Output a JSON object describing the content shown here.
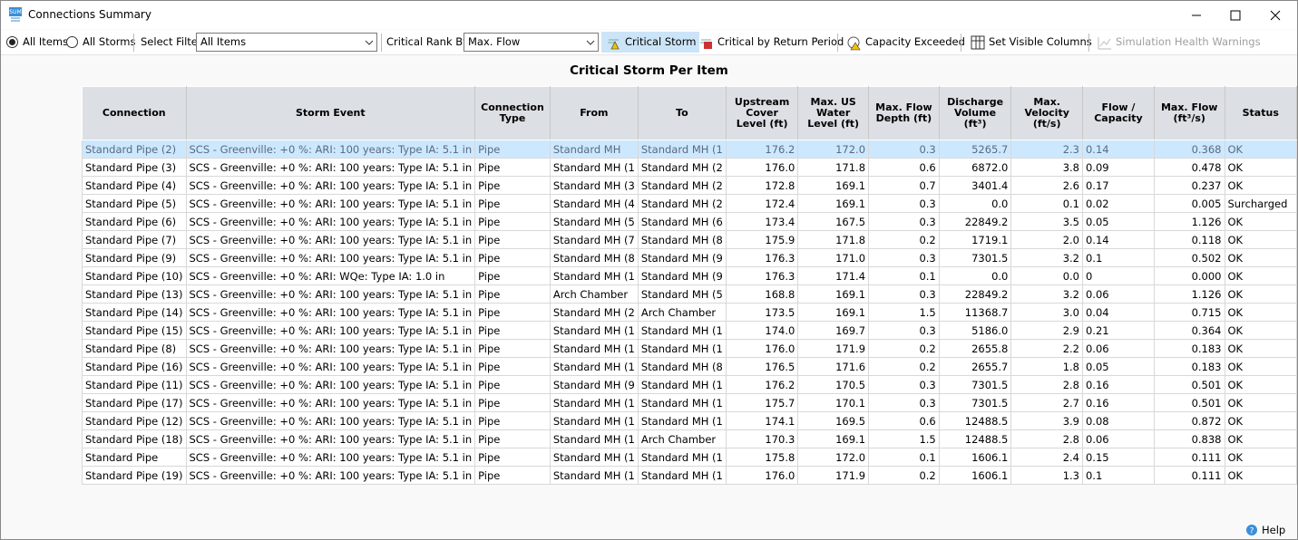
{
  "window": {
    "title": "Connections Summary"
  },
  "toolbar": {
    "all_items": "All Items",
    "all_storms": "All Storms",
    "select_filter_label": "Select Filter",
    "select_filter_value": "All Items",
    "rank_label": "Critical Rank By:",
    "rank_value": "Max. Flow",
    "buttons": [
      "Critical Storm",
      "Critical by Return Period",
      "Capacity Exceeded",
      "Set Visible Columns",
      "Simulation Health Warnings"
    ]
  },
  "table": {
    "title": "Critical Storm Per Item",
    "columns": [
      "Connection",
      "Storm Event",
      "Connection Type",
      "From",
      "To",
      "Upstream Cover Level (ft)",
      "Max. US Water Level (ft)",
      "Max. Flow Depth (ft)",
      "Discharge Volume (ft³)",
      "Max. Velocity (ft/s)",
      "Flow / Capacity",
      "Max. Flow (ft³/s)",
      "Status"
    ],
    "rows": [
      [
        "Standard Pipe (2)",
        "SCS - Greenville: +0 %: ARI: 100 years: Type IA: 5.1 in",
        "Pipe",
        "Standard MH",
        "Standard MH (1",
        "176.2",
        "172.0",
        "0.3",
        "5265.7",
        "2.3",
        "0.14",
        "0.368",
        "OK"
      ],
      [
        "Standard Pipe (3)",
        "SCS - Greenville: +0 %: ARI: 100 years: Type IA: 5.1 in",
        "Pipe",
        "Standard MH (1",
        "Standard MH (2",
        "176.0",
        "171.8",
        "0.6",
        "6872.0",
        "3.8",
        "0.09",
        "0.478",
        "OK"
      ],
      [
        "Standard Pipe (4)",
        "SCS - Greenville: +0 %: ARI: 100 years: Type IA: 5.1 in",
        "Pipe",
        "Standard MH (3",
        "Standard MH (2",
        "172.8",
        "169.1",
        "0.7",
        "3401.4",
        "2.6",
        "0.17",
        "0.237",
        "OK"
      ],
      [
        "Standard Pipe (5)",
        "SCS - Greenville: +0 %: ARI: 100 years: Type IA: 5.1 in",
        "Pipe",
        "Standard MH (4",
        "Standard MH (2",
        "172.4",
        "169.1",
        "0.3",
        "0.0",
        "0.1",
        "0.02",
        "0.005",
        "Surcharged"
      ],
      [
        "Standard Pipe (6)",
        "SCS - Greenville: +0 %: ARI: 100 years: Type IA: 5.1 in",
        "Pipe",
        "Standard MH (5",
        "Standard MH (6",
        "173.4",
        "167.5",
        "0.3",
        "22849.2",
        "3.5",
        "0.05",
        "1.126",
        "OK"
      ],
      [
        "Standard Pipe (7)",
        "SCS - Greenville: +0 %: ARI: 100 years: Type IA: 5.1 in",
        "Pipe",
        "Standard MH (7",
        "Standard MH (8",
        "175.9",
        "171.8",
        "0.2",
        "1719.1",
        "2.0",
        "0.14",
        "0.118",
        "OK"
      ],
      [
        "Standard Pipe (9)",
        "SCS - Greenville: +0 %: ARI: 100 years: Type IA: 5.1 in",
        "Pipe",
        "Standard MH (8",
        "Standard MH (9",
        "176.3",
        "171.0",
        "0.3",
        "7301.5",
        "3.2",
        "0.1",
        "0.502",
        "OK"
      ],
      [
        "Standard Pipe (10)",
        "SCS - Greenville: +0 %: ARI: WQe: Type IA: 1.0 in",
        "Pipe",
        "Standard MH (1",
        "Standard MH (9",
        "176.3",
        "171.4",
        "0.1",
        "0.0",
        "0.0",
        "0",
        "0.000",
        "OK"
      ],
      [
        "Standard Pipe (13)",
        "SCS - Greenville: +0 %: ARI: 100 years: Type IA: 5.1 in",
        "Pipe",
        "Arch Chamber",
        "Standard MH (5",
        "168.8",
        "169.1",
        "0.3",
        "22849.2",
        "3.2",
        "0.06",
        "1.126",
        "OK"
      ],
      [
        "Standard Pipe (14)",
        "SCS - Greenville: +0 %: ARI: 100 years: Type IA: 5.1 in",
        "Pipe",
        "Standard MH (2",
        "Arch Chamber",
        "173.5",
        "169.1",
        "1.5",
        "11368.7",
        "3.0",
        "0.04",
        "0.715",
        "OK"
      ],
      [
        "Standard Pipe (15)",
        "SCS - Greenville: +0 %: ARI: 100 years: Type IA: 5.1 in",
        "Pipe",
        "Standard MH (1",
        "Standard MH (1",
        "174.0",
        "169.7",
        "0.3",
        "5186.0",
        "2.9",
        "0.21",
        "0.364",
        "OK"
      ],
      [
        "Standard Pipe (8)",
        "SCS - Greenville: +0 %: ARI: 100 years: Type IA: 5.1 in",
        "Pipe",
        "Standard MH (1",
        "Standard MH (1",
        "176.0",
        "171.9",
        "0.2",
        "2655.8",
        "2.2",
        "0.06",
        "0.183",
        "OK"
      ],
      [
        "Standard Pipe (16)",
        "SCS - Greenville: +0 %: ARI: 100 years: Type IA: 5.1 in",
        "Pipe",
        "Standard MH (1",
        "Standard MH (8",
        "176.5",
        "171.6",
        "0.2",
        "2655.7",
        "1.8",
        "0.05",
        "0.183",
        "OK"
      ],
      [
        "Standard Pipe (11)",
        "SCS - Greenville: +0 %: ARI: 100 years: Type IA: 5.1 in",
        "Pipe",
        "Standard MH (9",
        "Standard MH (1",
        "176.2",
        "170.5",
        "0.3",
        "7301.5",
        "2.8",
        "0.16",
        "0.501",
        "OK"
      ],
      [
        "Standard Pipe (17)",
        "SCS - Greenville: +0 %: ARI: 100 years: Type IA: 5.1 in",
        "Pipe",
        "Standard MH (1",
        "Standard MH (1",
        "175.7",
        "170.1",
        "0.3",
        "7301.5",
        "2.7",
        "0.16",
        "0.501",
        "OK"
      ],
      [
        "Standard Pipe (12)",
        "SCS - Greenville: +0 %: ARI: 100 years: Type IA: 5.1 in",
        "Pipe",
        "Standard MH (1",
        "Standard MH (1",
        "174.1",
        "169.5",
        "0.6",
        "12488.5",
        "3.9",
        "0.08",
        "0.872",
        "OK"
      ],
      [
        "Standard Pipe (18)",
        "SCS - Greenville: +0 %: ARI: 100 years: Type IA: 5.1 in",
        "Pipe",
        "Standard MH (1",
        "Arch Chamber",
        "170.3",
        "169.1",
        "1.5",
        "12488.5",
        "2.8",
        "0.06",
        "0.838",
        "OK"
      ],
      [
        "Standard Pipe",
        "SCS - Greenville: +0 %: ARI: 100 years: Type IA: 5.1 in",
        "Pipe",
        "Standard MH (1",
        "Standard MH (1",
        "175.8",
        "172.0",
        "0.1",
        "1606.1",
        "2.4",
        "0.15",
        "0.111",
        "OK"
      ],
      [
        "Standard Pipe (19)",
        "SCS - Greenville: +0 %: ARI: 100 years: Type IA: 5.1 in",
        "Pipe",
        "Standard MH (1",
        "Standard MH (1",
        "176.0",
        "171.9",
        "0.2",
        "1606.1",
        "1.3",
        "0.1",
        "0.111",
        "OK"
      ]
    ]
  },
  "footer": {
    "help": "Help"
  }
}
